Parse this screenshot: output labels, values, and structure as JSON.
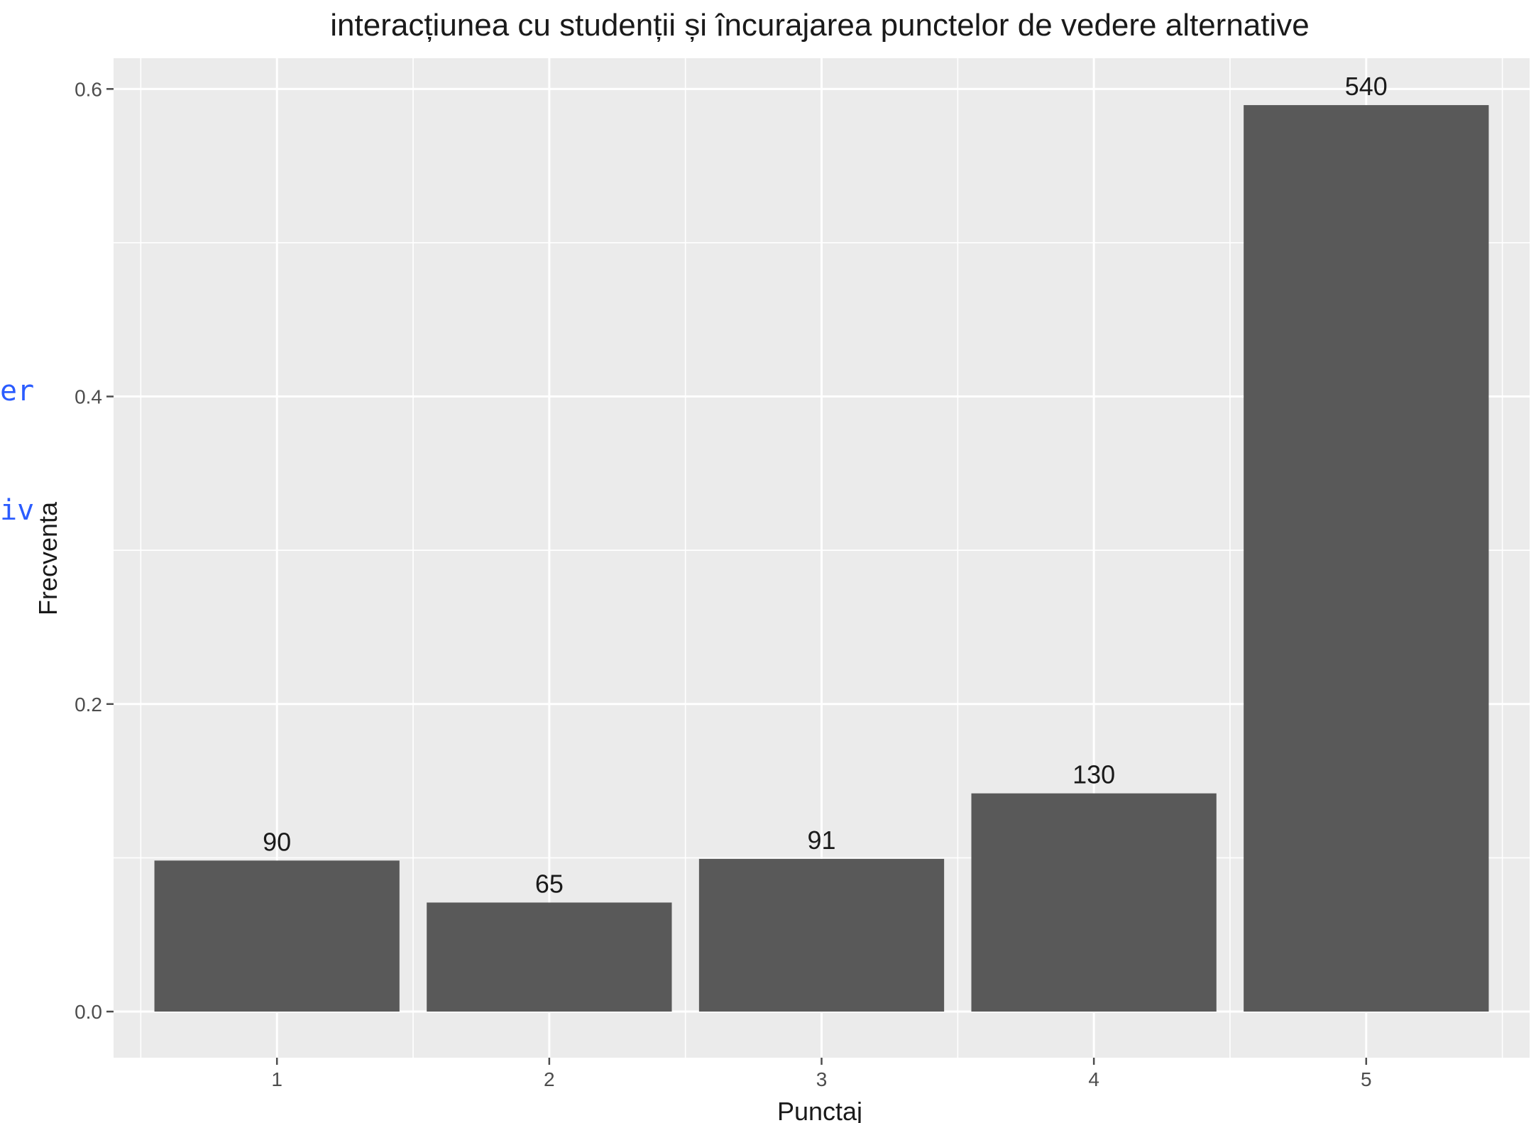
{
  "side_fragments": [
    "er",
    "iv"
  ],
  "chart_data": {
    "type": "bar",
    "title": "interacțiunea cu studenții și încurajarea punctelor de vedere alternative",
    "xlabel": "Punctaj",
    "ylabel": "Frecventa",
    "categories": [
      "1",
      "2",
      "3",
      "4",
      "5"
    ],
    "values": [
      0.0982,
      0.0709,
      0.0993,
      0.1419,
      0.5895
    ],
    "labels": [
      "90",
      "65",
      "91",
      "130",
      "540"
    ],
    "ylim": [
      -0.03,
      0.62
    ],
    "yticks": [
      0.0,
      0.2,
      0.4,
      0.6
    ],
    "ytick_labels": [
      "0.0",
      "0.2",
      "0.4",
      "0.6"
    ],
    "grid": true,
    "colors": {
      "panel": "#EBEBEB",
      "bar": "#595959",
      "grid": "#FFFFFF",
      "text": "#1a1a1a",
      "tick": "#4d4d4d"
    }
  }
}
